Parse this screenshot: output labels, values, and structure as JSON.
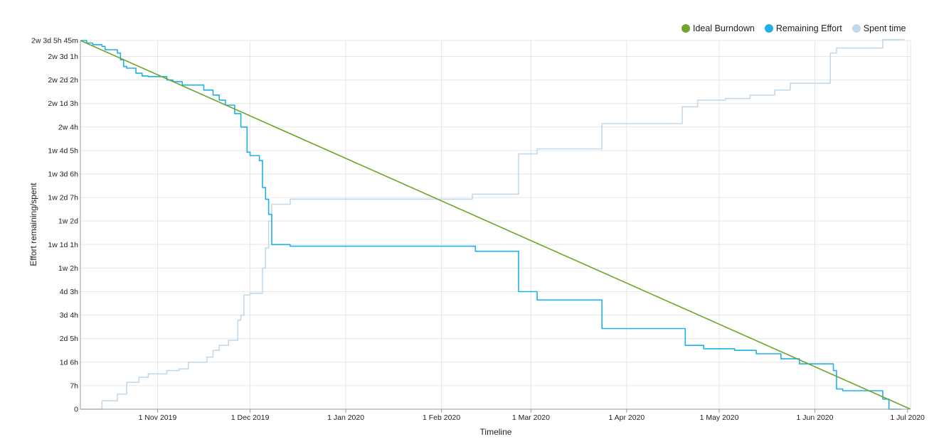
{
  "chart_data": {
    "type": "line",
    "xlabel": "Timeline",
    "ylabel": "Effort remaining/spent",
    "x_domain": [
      "2019-10-07",
      "2020-07-02"
    ],
    "x_ticks": [
      {
        "date": "2019-11-01",
        "label": "1 Nov 2019"
      },
      {
        "date": "2019-12-01",
        "label": "1 Dec 2019"
      },
      {
        "date": "2020-01-01",
        "label": "1 Jan 2020"
      },
      {
        "date": "2020-02-01",
        "label": "1 Feb 2020"
      },
      {
        "date": "2020-03-01",
        "label": "1 Mar 2020"
      },
      {
        "date": "2020-04-01",
        "label": "1 Apr 2020"
      },
      {
        "date": "2020-05-01",
        "label": "1 May 2020"
      },
      {
        "date": "2020-06-01",
        "label": "1 Jun 2020"
      },
      {
        "date": "2020-07-01",
        "label": "1 Jul 2020"
      }
    ],
    "y_unit": "hours",
    "ylim": [
      0,
      125.75
    ],
    "y_ticks": [
      {
        "value": 0,
        "label": "0"
      },
      {
        "value": 7,
        "label": "7h"
      },
      {
        "value": 14,
        "label": "1d 6h"
      },
      {
        "value": 21,
        "label": "2d 5h"
      },
      {
        "value": 28,
        "label": "3d 4h"
      },
      {
        "value": 35,
        "label": "4d 3h"
      },
      {
        "value": 42,
        "label": "1w 2h"
      },
      {
        "value": 49,
        "label": "1w 1d 1h"
      },
      {
        "value": 56,
        "label": "1w 2d"
      },
      {
        "value": 63,
        "label": "1w 2d 7h"
      },
      {
        "value": 70,
        "label": "1w 3d 6h"
      },
      {
        "value": 77,
        "label": "1w 4d 5h"
      },
      {
        "value": 84,
        "label": "2w 4h"
      },
      {
        "value": 91,
        "label": "2w 1d 3h"
      },
      {
        "value": 98,
        "label": "2w 2d 2h"
      },
      {
        "value": 105,
        "label": "2w 3d 1h"
      },
      {
        "value": 109.75,
        "label": "2w 3d 5h 45m"
      }
    ],
    "legend": {
      "position": "top-right",
      "entries": [
        {
          "name": "Ideal Burndown",
          "color": "#6ea52a"
        },
        {
          "name": "Remaining Effort",
          "color": "#1eb0e8"
        },
        {
          "name": "Spent time",
          "color": "#c3d9ea"
        }
      ]
    },
    "series": [
      {
        "name": "Ideal Burndown",
        "color": "#6ea52a",
        "interpolation": "linear",
        "points": [
          [
            "2019-10-07",
            109.75
          ],
          [
            "2020-07-02",
            0
          ]
        ]
      },
      {
        "name": "Remaining Effort",
        "color": "#1eb0e8",
        "interpolation": "step",
        "points": [
          [
            "2019-10-07",
            109.75
          ],
          [
            "2019-10-09",
            109
          ],
          [
            "2019-10-11",
            108.5
          ],
          [
            "2019-10-14",
            108
          ],
          [
            "2019-10-15",
            107
          ],
          [
            "2019-10-19",
            106
          ],
          [
            "2019-10-20",
            104
          ],
          [
            "2019-10-21",
            102
          ],
          [
            "2019-10-22",
            101.5
          ],
          [
            "2019-10-25",
            100
          ],
          [
            "2019-10-27",
            99.2
          ],
          [
            "2019-10-29",
            99
          ],
          [
            "2019-11-04",
            98
          ],
          [
            "2019-11-06",
            97.5
          ],
          [
            "2019-11-09",
            96.5
          ],
          [
            "2019-11-16",
            95
          ],
          [
            "2019-11-19",
            93.5
          ],
          [
            "2019-11-21",
            92
          ],
          [
            "2019-11-23",
            90.5
          ],
          [
            "2019-11-26",
            88
          ],
          [
            "2019-11-28",
            84
          ],
          [
            "2019-11-30",
            76.5
          ],
          [
            "2019-12-01",
            75.5
          ],
          [
            "2019-12-04",
            74
          ],
          [
            "2019-12-05",
            66
          ],
          [
            "2019-12-06",
            62.5
          ],
          [
            "2019-12-07",
            58
          ],
          [
            "2019-12-08",
            49
          ],
          [
            "2019-12-14",
            48.5
          ],
          [
            "2020-02-12",
            47
          ],
          [
            "2020-02-26",
            35
          ],
          [
            "2020-03-03",
            32.5
          ],
          [
            "2020-03-24",
            24
          ],
          [
            "2020-04-20",
            19
          ],
          [
            "2020-04-26",
            18
          ],
          [
            "2020-05-06",
            17.5
          ],
          [
            "2020-05-13",
            16.5
          ],
          [
            "2020-05-21",
            15
          ],
          [
            "2020-05-27",
            13.5
          ],
          [
            "2020-06-07",
            11.5
          ],
          [
            "2020-06-08",
            6
          ],
          [
            "2020-06-10",
            5.5
          ],
          [
            "2020-06-23",
            3
          ],
          [
            "2020-06-25",
            0
          ],
          [
            "2020-06-29",
            0
          ]
        ]
      },
      {
        "name": "Spent time",
        "color": "#c3d9ea",
        "interpolation": "step",
        "points": [
          [
            "2019-10-07",
            0
          ],
          [
            "2019-10-14",
            2.5
          ],
          [
            "2019-10-19",
            4.5
          ],
          [
            "2019-10-22",
            8
          ],
          [
            "2019-10-26",
            9.5
          ],
          [
            "2019-10-29",
            10.5
          ],
          [
            "2019-11-04",
            11.5
          ],
          [
            "2019-11-08",
            12
          ],
          [
            "2019-11-11",
            14
          ],
          [
            "2019-11-17",
            15.5
          ],
          [
            "2019-11-19",
            17.5
          ],
          [
            "2019-11-21",
            19
          ],
          [
            "2019-11-24",
            20.5
          ],
          [
            "2019-11-27",
            26.5
          ],
          [
            "2019-11-28",
            28
          ],
          [
            "2019-11-29",
            34
          ],
          [
            "2019-12-01",
            34.5
          ],
          [
            "2019-12-05",
            42
          ],
          [
            "2019-12-06",
            48
          ],
          [
            "2019-12-07",
            56
          ],
          [
            "2019-12-08",
            61
          ],
          [
            "2019-12-14",
            62.5
          ],
          [
            "2020-02-11",
            64
          ],
          [
            "2020-02-26",
            76
          ],
          [
            "2020-03-03",
            77.5
          ],
          [
            "2020-03-24",
            85
          ],
          [
            "2020-04-19",
            90
          ],
          [
            "2020-04-24",
            92
          ],
          [
            "2020-05-03",
            92.5
          ],
          [
            "2020-05-11",
            93.5
          ],
          [
            "2020-05-19",
            95
          ],
          [
            "2020-05-24",
            97
          ],
          [
            "2020-06-06",
            106
          ],
          [
            "2020-06-08",
            107.5
          ],
          [
            "2020-06-23",
            110
          ],
          [
            "2020-06-30",
            110
          ]
        ]
      }
    ]
  }
}
